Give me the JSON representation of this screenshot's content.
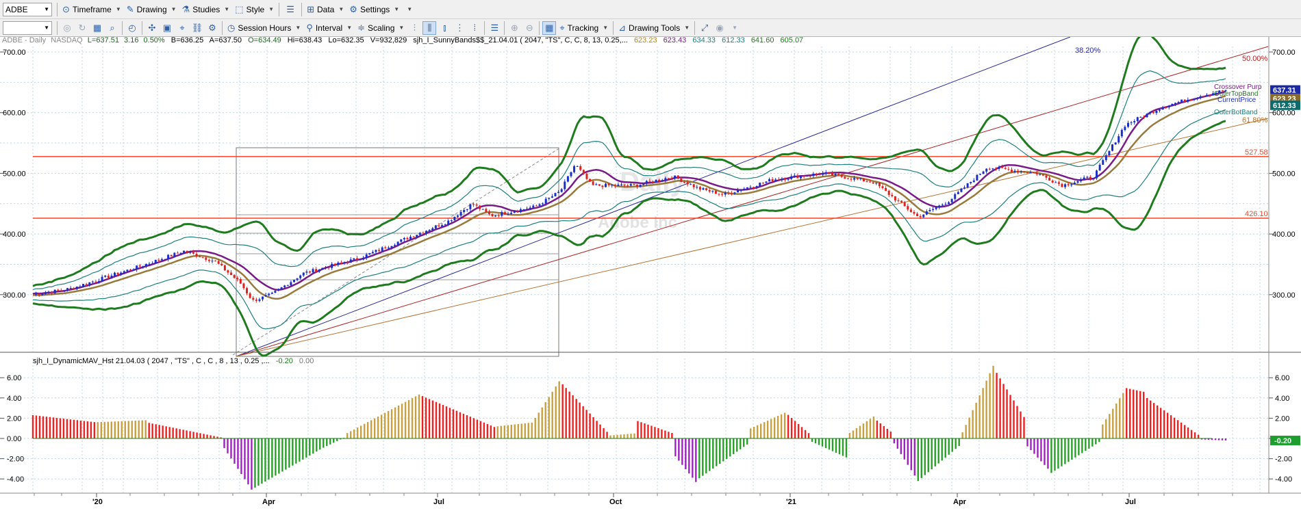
{
  "toolbar1": {
    "symbol": "ADBE",
    "items": [
      "Timeframe",
      "Drawing",
      "Studies",
      "Style",
      "Data",
      "Settings"
    ]
  },
  "toolbar2": {
    "items": [
      "Session Hours",
      "Interval",
      "Scaling",
      "Tracking",
      "Drawing Tools"
    ]
  },
  "header": {
    "symbol": "ADBE - Daily",
    "exchange": "NASDAQ",
    "last": "L=637.51",
    "change": "3.16",
    "pct": "0.50%",
    "bid": "B=636.25",
    "ask": "A=637.50",
    "open": "O=634.49",
    "high": "Hi=638.43",
    "low": "Lo=632.35",
    "volume": "V=932,829",
    "study": "sjh_I_SunnyBands$$_21.04.01 ( 2047, \"TS\", C, C,   8, 13, 0.25,...",
    "values": [
      "623.23",
      "623.43",
      "634.33",
      "612.33",
      "641.60",
      "605.07"
    ]
  },
  "watermark": {
    "line1": "Daily",
    "line2": "Adobe Inc"
  },
  "price_axis": {
    "ticks": [
      "700.00",
      "600.00",
      "500.00",
      "400.00",
      "300.00"
    ]
  },
  "hlines": [
    {
      "label": "527.58",
      "value": 527.58
    },
    {
      "label": "426.10",
      "value": 426.1
    }
  ],
  "fib_labels": [
    "38.20%",
    "50.00%",
    "61.80%"
  ],
  "band_labels": [
    "Crossover Purp",
    "OuterTopBand",
    "CurrentPrice",
    "OuterBotBand"
  ],
  "price_badges": [
    {
      "text": "637.31",
      "color": "#1b2aa6",
      "value": 637.31
    },
    {
      "text": "623.23",
      "color": "#8a6a2a",
      "value": 623.23
    },
    {
      "text": "612.33",
      "color": "#0f6b6b",
      "value": 612.33
    }
  ],
  "lower": {
    "title": "sjh_I_DynamicMAV_Hst 21.04.03 ( 2047 , \"TS\" , C , C ,  8 , 13 , 0.25 ,...",
    "v1": "-0.20",
    "v2": "0.00",
    "ticks": [
      "6.00",
      "4.00",
      "2.00",
      "0.00",
      "-2.00",
      "-4.00"
    ],
    "badge": "-0.20"
  },
  "time_axis": {
    "labels": [
      "'20",
      "Apr",
      "Jul",
      "Oct",
      "'21",
      "Apr",
      "Jul"
    ]
  },
  "colors": {
    "band_green": "#1e7b1e",
    "band_teal": "#1f8080",
    "band_purple": "#7a1a8a",
    "band_brown": "#9a7a3a",
    "up_candle": "#1a2ec8",
    "down_candle": "#e02020",
    "hline": "#ff4020",
    "hist_gold": "#c8a040",
    "hist_red": "#ee2020",
    "hist_green": "#28a028",
    "hist_purple": "#a020c0"
  },
  "chart_data": {
    "type": "candlestick",
    "price_series_anchors": [
      {
        "x": 0.0,
        "close": 300
      },
      {
        "x": 0.03,
        "close": 310
      },
      {
        "x": 0.06,
        "close": 330
      },
      {
        "x": 0.09,
        "close": 350
      },
      {
        "x": 0.12,
        "close": 372
      },
      {
        "x": 0.145,
        "close": 355
      },
      {
        "x": 0.165,
        "close": 320
      },
      {
        "x": 0.175,
        "close": 290
      },
      {
        "x": 0.19,
        "close": 300
      },
      {
        "x": 0.215,
        "close": 335
      },
      {
        "x": 0.26,
        "close": 360
      },
      {
        "x": 0.3,
        "close": 395
      },
      {
        "x": 0.33,
        "close": 420
      },
      {
        "x": 0.35,
        "close": 450
      },
      {
        "x": 0.365,
        "close": 430
      },
      {
        "x": 0.4,
        "close": 445
      },
      {
        "x": 0.42,
        "close": 470
      },
      {
        "x": 0.432,
        "close": 515
      },
      {
        "x": 0.445,
        "close": 480
      },
      {
        "x": 0.48,
        "close": 480
      },
      {
        "x": 0.51,
        "close": 495
      },
      {
        "x": 0.53,
        "close": 475
      },
      {
        "x": 0.55,
        "close": 465
      },
      {
        "x": 0.59,
        "close": 490
      },
      {
        "x": 0.63,
        "close": 500
      },
      {
        "x": 0.67,
        "close": 485
      },
      {
        "x": 0.705,
        "close": 428
      },
      {
        "x": 0.73,
        "close": 455
      },
      {
        "x": 0.76,
        "close": 510
      },
      {
        "x": 0.8,
        "close": 500
      },
      {
        "x": 0.82,
        "close": 480
      },
      {
        "x": 0.845,
        "close": 495
      },
      {
        "x": 0.87,
        "close": 580
      },
      {
        "x": 0.9,
        "close": 610
      },
      {
        "x": 0.93,
        "close": 628
      },
      {
        "x": 0.95,
        "close": 637
      }
    ],
    "histogram_segments": [
      {
        "from": 0.0,
        "to": 0.05,
        "h0": 2.3,
        "h1": 1.6,
        "color": "red"
      },
      {
        "from": 0.05,
        "to": 0.09,
        "h0": 1.6,
        "h1": 1.8,
        "color": "gold"
      },
      {
        "from": 0.09,
        "to": 0.15,
        "h0": 1.6,
        "h1": 0.1,
        "color": "red"
      },
      {
        "from": 0.15,
        "to": 0.175,
        "h0": -0.5,
        "h1": -5.2,
        "color": "purple"
      },
      {
        "from": 0.175,
        "to": 0.23,
        "h0": -5.0,
        "h1": -1.0,
        "color": "green"
      },
      {
        "from": 0.23,
        "to": 0.25,
        "h0": -1.0,
        "h1": 0.2,
        "color": "green"
      },
      {
        "from": 0.25,
        "to": 0.31,
        "h0": 0.5,
        "h1": 4.5,
        "color": "gold"
      },
      {
        "from": 0.31,
        "to": 0.37,
        "h0": 4.2,
        "h1": 1.0,
        "color": "red"
      },
      {
        "from": 0.37,
        "to": 0.4,
        "h0": 1.2,
        "h1": 1.6,
        "color": "gold"
      },
      {
        "from": 0.4,
        "to": 0.42,
        "h0": 2.0,
        "h1": 5.8,
        "color": "gold"
      },
      {
        "from": 0.42,
        "to": 0.46,
        "h0": 5.6,
        "h1": 0.3,
        "color": "red"
      },
      {
        "from": 0.46,
        "to": 0.48,
        "h0": 0.3,
        "h1": 0.5,
        "color": "gold"
      },
      {
        "from": 0.48,
        "to": 0.51,
        "h0": 1.8,
        "h1": 0.5,
        "color": "red"
      },
      {
        "from": 0.51,
        "to": 0.53,
        "h0": -1.5,
        "h1": -4.6,
        "color": "purple"
      },
      {
        "from": 0.53,
        "to": 0.57,
        "h0": -4.0,
        "h1": -0.5,
        "color": "green"
      },
      {
        "from": 0.57,
        "to": 0.6,
        "h0": 0.9,
        "h1": 2.6,
        "color": "gold"
      },
      {
        "from": 0.6,
        "to": 0.62,
        "h0": 2.5,
        "h1": 0.3,
        "color": "red"
      },
      {
        "from": 0.62,
        "to": 0.65,
        "h0": -0.3,
        "h1": -2.0,
        "color": "green"
      },
      {
        "from": 0.65,
        "to": 0.67,
        "h0": 0.5,
        "h1": 2.2,
        "color": "gold"
      },
      {
        "from": 0.67,
        "to": 0.685,
        "h0": 2.0,
        "h1": 0.5,
        "color": "red"
      },
      {
        "from": 0.685,
        "to": 0.705,
        "h0": -0.3,
        "h1": -4.2,
        "color": "purple"
      },
      {
        "from": 0.705,
        "to": 0.74,
        "h0": -4.2,
        "h1": -0.5,
        "color": "green"
      },
      {
        "from": 0.74,
        "to": 0.765,
        "h0": 0.5,
        "h1": 7.2,
        "color": "gold"
      },
      {
        "from": 0.765,
        "to": 0.79,
        "h0": 7.0,
        "h1": 2.0,
        "color": "red"
      },
      {
        "from": 0.79,
        "to": 0.81,
        "h0": -0.5,
        "h1": -3.2,
        "color": "purple"
      },
      {
        "from": 0.81,
        "to": 0.85,
        "h0": -3.5,
        "h1": -0.3,
        "color": "green"
      },
      {
        "from": 0.85,
        "to": 0.87,
        "h0": 1.0,
        "h1": 4.8,
        "color": "gold"
      },
      {
        "from": 0.87,
        "to": 0.885,
        "h0": 5.0,
        "h1": 4.6,
        "color": "red"
      },
      {
        "from": 0.885,
        "to": 0.93,
        "h0": 4.2,
        "h1": 0.2,
        "color": "red"
      },
      {
        "from": 0.93,
        "to": 0.95,
        "h0": -0.1,
        "h1": -0.2,
        "color": "purple"
      }
    ]
  }
}
